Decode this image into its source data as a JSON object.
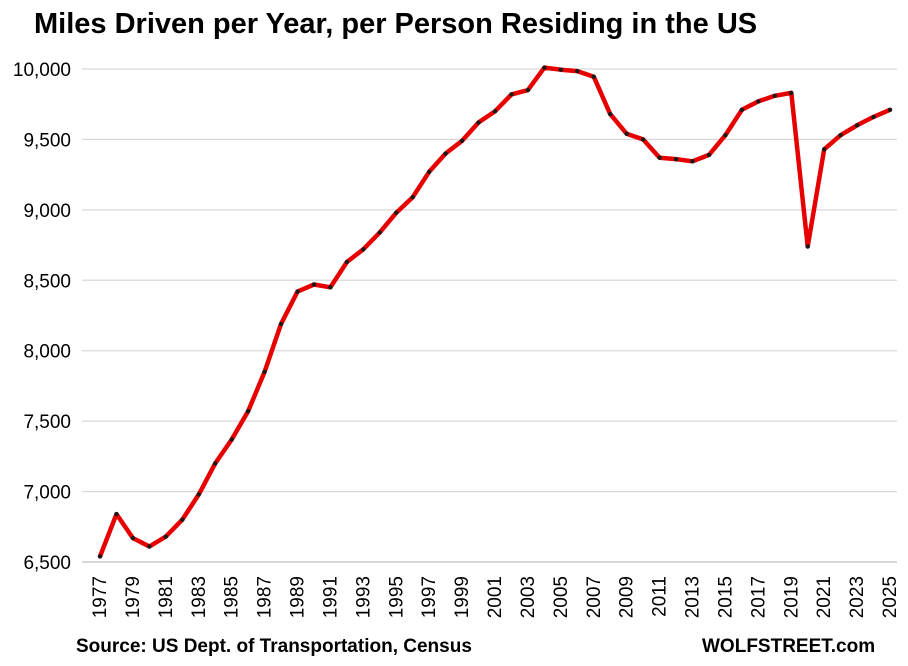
{
  "title": "Miles Driven per Year, per Person Residing in the US",
  "source": "Source: US Dept. of Transportation, Census",
  "brand": "WOLFSTREET.com",
  "colors": {
    "line": "#e60000",
    "marker": "#1a1a1a",
    "grid": "#d9d9d9"
  },
  "chart_data": {
    "type": "line",
    "title": "Miles Driven per Year, per Person Residing in the US",
    "xlabel": "",
    "ylabel": "",
    "ylim": [
      6500,
      10000
    ],
    "y_ticks": [
      6500,
      7000,
      7500,
      8000,
      8500,
      9000,
      9500,
      10000
    ],
    "y_tick_labels": [
      "6,500",
      "7,000",
      "7,500",
      "8,000",
      "8,500",
      "9,000",
      "9,500",
      "10,000"
    ],
    "x_tick_labels": [
      "1977",
      "1979",
      "1981",
      "1983",
      "1985",
      "1987",
      "1989",
      "1991",
      "1993",
      "1995",
      "1997",
      "1999",
      "2001",
      "2003",
      "2005",
      "2007",
      "2009",
      "2011",
      "2013",
      "2015",
      "2017",
      "2019",
      "2021",
      "2023",
      "2025"
    ],
    "grid": true,
    "legend": "none",
    "x": [
      1977,
      1978,
      1979,
      1980,
      1981,
      1982,
      1983,
      1984,
      1985,
      1986,
      1987,
      1988,
      1989,
      1990,
      1991,
      1992,
      1993,
      1994,
      1995,
      1996,
      1997,
      1998,
      1999,
      2000,
      2001,
      2002,
      2003,
      2004,
      2005,
      2006,
      2007,
      2008,
      2009,
      2010,
      2011,
      2012,
      2013,
      2014,
      2015,
      2016,
      2017,
      2018,
      2019,
      2020,
      2021,
      2022,
      2023,
      2024,
      2025
    ],
    "values": [
      6540,
      6840,
      6670,
      6610,
      6680,
      6800,
      6980,
      7200,
      7370,
      7570,
      7850,
      8190,
      8420,
      8470,
      8450,
      8630,
      8720,
      8840,
      8980,
      9090,
      9270,
      9400,
      9490,
      9620,
      9700,
      9820,
      9850,
      10010,
      9995,
      9985,
      9945,
      9680,
      9540,
      9500,
      9370,
      9360,
      9345,
      9390,
      9530,
      9710,
      9770,
      9810,
      9830,
      8740,
      9430,
      9530,
      9600,
      9660,
      9710
    ]
  }
}
